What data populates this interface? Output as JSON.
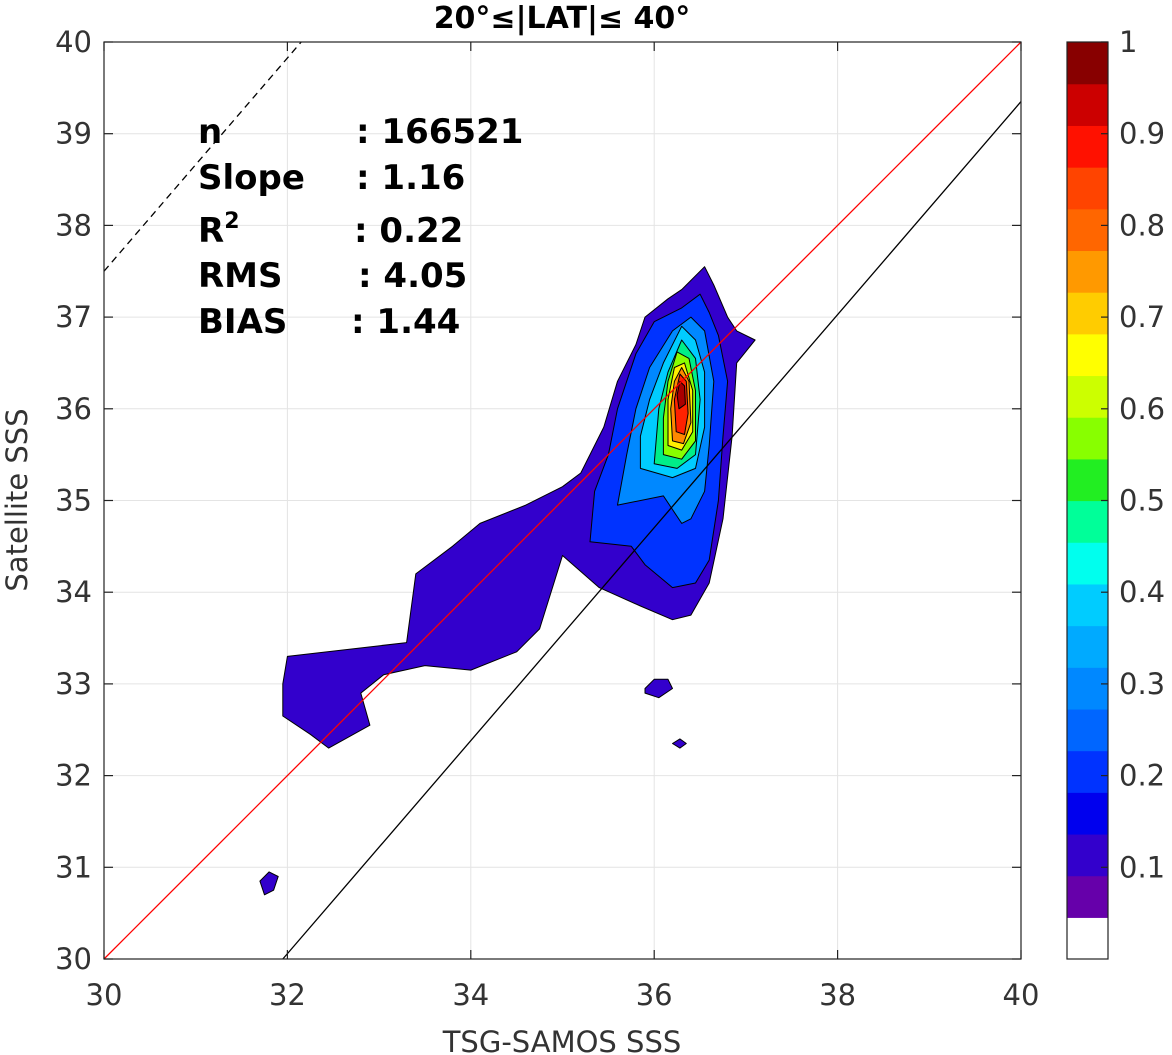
{
  "chart_data": {
    "type": "contour",
    "title": "20°≤|LAT|≤ 40°",
    "xlabel": "TSG-SAMOS SSS",
    "ylabel": "Satellite SSS",
    "xlim": [
      30,
      40
    ],
    "ylim": [
      30,
      40
    ],
    "x_ticks": [
      "30",
      "32",
      "34",
      "36",
      "38",
      "40"
    ],
    "y_ticks": [
      "30",
      "31",
      "32",
      "33",
      "34",
      "35",
      "36",
      "37",
      "38",
      "39",
      "40"
    ],
    "grid": true,
    "stats": {
      "n_label": "n",
      "n_value": ": 166521",
      "slope_label": "Slope",
      "slope_value": ": 1.16",
      "r2_label": "R",
      "r2_sup": "2",
      "r2_value": ": 0.22",
      "rms_label": "RMS",
      "rms_value": ": 4.05",
      "bias_label": "BIAS",
      "bias_value": ": 1.44"
    },
    "lines": [
      {
        "name": "one-to-one",
        "color": "#ff0000",
        "style": "solid",
        "points": [
          [
            30,
            30
          ],
          [
            40,
            40
          ]
        ]
      },
      {
        "name": "fit",
        "color": "#000000",
        "style": "solid",
        "points": [
          [
            31.95,
            30
          ],
          [
            40,
            39.35
          ]
        ]
      },
      {
        "name": "offset",
        "color": "#000000",
        "style": "dashed",
        "points": [
          [
            30,
            37.5
          ],
          [
            32.15,
            40
          ]
        ]
      }
    ],
    "contour_levels": [
      {
        "level": 0.05,
        "color": "#3300cc",
        "polygons": [
          [
            [
              32.0,
              33.3
            ],
            [
              33.3,
              33.45
            ],
            [
              33.4,
              34.2
            ],
            [
              33.8,
              34.5
            ],
            [
              34.1,
              34.75
            ],
            [
              34.6,
              34.95
            ],
            [
              35.0,
              35.15
            ],
            [
              35.2,
              35.3
            ],
            [
              35.45,
              35.8
            ],
            [
              35.6,
              36.3
            ],
            [
              35.8,
              36.7
            ],
            [
              35.9,
              37.0
            ],
            [
              36.15,
              37.2
            ],
            [
              36.3,
              37.3
            ],
            [
              36.55,
              37.55
            ],
            [
              36.65,
              37.35
            ],
            [
              36.8,
              37.0
            ],
            [
              36.9,
              36.85
            ],
            [
              37.1,
              36.75
            ],
            [
              36.9,
              36.5
            ],
            [
              36.85,
              35.7
            ],
            [
              36.75,
              34.8
            ],
            [
              36.6,
              34.1
            ],
            [
              36.4,
              33.75
            ],
            [
              36.2,
              33.7
            ],
            [
              35.85,
              33.85
            ],
            [
              35.4,
              34.05
            ],
            [
              35.0,
              34.4
            ],
            [
              34.75,
              33.6
            ],
            [
              34.5,
              33.35
            ],
            [
              34.0,
              33.15
            ],
            [
              33.5,
              33.2
            ],
            [
              33.05,
              33.1
            ],
            [
              32.8,
              32.9
            ],
            [
              32.9,
              32.55
            ],
            [
              32.45,
              32.3
            ],
            [
              32.25,
              32.45
            ],
            [
              31.95,
              32.65
            ],
            [
              31.95,
              33.0
            ]
          ],
          [
            [
              31.7,
              30.85
            ],
            [
              31.8,
              30.95
            ],
            [
              31.9,
              30.9
            ],
            [
              31.85,
              30.75
            ],
            [
              31.75,
              30.7
            ]
          ],
          [
            [
              35.9,
              32.95
            ],
            [
              36.0,
              33.05
            ],
            [
              36.15,
              33.05
            ],
            [
              36.2,
              32.95
            ],
            [
              36.05,
              32.85
            ],
            [
              35.9,
              32.9
            ]
          ],
          [
            [
              36.2,
              32.35
            ],
            [
              36.28,
              32.4
            ],
            [
              36.35,
              32.35
            ],
            [
              36.28,
              32.3
            ]
          ]
        ]
      },
      {
        "level": 0.15,
        "color": "#0033ff",
        "polygons": [
          [
            [
              35.3,
              34.55
            ],
            [
              35.75,
              34.5
            ],
            [
              35.9,
              34.3
            ],
            [
              36.2,
              34.05
            ],
            [
              36.45,
              34.1
            ],
            [
              36.6,
              34.35
            ],
            [
              36.7,
              35.0
            ],
            [
              36.75,
              35.7
            ],
            [
              36.8,
              36.3
            ],
            [
              36.7,
              36.8
            ],
            [
              36.6,
              37.05
            ],
            [
              36.5,
              37.25
            ],
            [
              36.3,
              37.1
            ],
            [
              36.0,
              36.95
            ],
            [
              35.8,
              36.6
            ],
            [
              35.6,
              36.0
            ],
            [
              35.5,
              35.5
            ],
            [
              35.35,
              35.1
            ]
          ]
        ]
      },
      {
        "level": 0.25,
        "color": "#0088ff",
        "polygons": [
          [
            [
              35.6,
              34.95
            ],
            [
              36.1,
              35.05
            ],
            [
              36.3,
              34.75
            ],
            [
              36.4,
              34.8
            ],
            [
              36.55,
              35.1
            ],
            [
              36.6,
              35.6
            ],
            [
              36.65,
              36.3
            ],
            [
              36.55,
              36.85
            ],
            [
              36.4,
              37.0
            ],
            [
              36.2,
              36.85
            ],
            [
              35.95,
              36.45
            ],
            [
              35.8,
              36.0
            ],
            [
              35.7,
              35.5
            ]
          ]
        ]
      },
      {
        "level": 0.35,
        "color": "#00ccff",
        "polygons": [
          [
            [
              35.85,
              35.35
            ],
            [
              36.2,
              35.25
            ],
            [
              36.45,
              35.35
            ],
            [
              36.55,
              35.8
            ],
            [
              36.55,
              36.4
            ],
            [
              36.45,
              36.75
            ],
            [
              36.3,
              36.9
            ],
            [
              36.1,
              36.5
            ],
            [
              35.95,
              36.1
            ],
            [
              35.85,
              35.7
            ]
          ]
        ]
      },
      {
        "level": 0.45,
        "color": "#00ee88",
        "polygons": [
          [
            [
              36.0,
              35.4
            ],
            [
              36.25,
              35.35
            ],
            [
              36.45,
              35.5
            ],
            [
              36.5,
              36.1
            ],
            [
              36.45,
              36.55
            ],
            [
              36.3,
              36.75
            ],
            [
              36.15,
              36.4
            ],
            [
              36.05,
              36.0
            ]
          ]
        ]
      },
      {
        "level": 0.55,
        "color": "#88ff00",
        "polygons": [
          [
            [
              36.1,
              35.5
            ],
            [
              36.3,
              35.45
            ],
            [
              36.45,
              35.65
            ],
            [
              36.45,
              36.2
            ],
            [
              36.38,
              36.55
            ],
            [
              36.25,
              36.62
            ],
            [
              36.15,
              36.3
            ],
            [
              36.1,
              35.9
            ]
          ]
        ]
      },
      {
        "level": 0.65,
        "color": "#ffee00",
        "polygons": [
          [
            [
              36.15,
              35.6
            ],
            [
              36.3,
              35.55
            ],
            [
              36.42,
              35.75
            ],
            [
              36.42,
              36.2
            ],
            [
              36.33,
              36.5
            ],
            [
              36.22,
              36.45
            ],
            [
              36.15,
              36.1
            ]
          ]
        ]
      },
      {
        "level": 0.75,
        "color": "#ff8800",
        "polygons": [
          [
            [
              36.2,
              35.65
            ],
            [
              36.32,
              35.62
            ],
            [
              36.4,
              35.85
            ],
            [
              36.38,
              36.3
            ],
            [
              36.3,
              36.45
            ],
            [
              36.22,
              36.3
            ],
            [
              36.18,
              36.0
            ]
          ]
        ]
      },
      {
        "level": 0.85,
        "color": "#ff2200",
        "polygons": [
          [
            [
              36.24,
              35.75
            ],
            [
              36.33,
              35.72
            ],
            [
              36.37,
              35.95
            ],
            [
              36.35,
              36.3
            ],
            [
              36.28,
              36.38
            ],
            [
              36.22,
              36.1
            ]
          ]
        ]
      },
      {
        "level": 0.95,
        "color": "#aa0000",
        "polygons": [
          [
            [
              36.27,
              36.0
            ],
            [
              36.34,
              36.05
            ],
            [
              36.33,
              36.25
            ],
            [
              36.28,
              36.3
            ],
            [
              36.25,
              36.15
            ]
          ]
        ]
      }
    ],
    "colorbar": {
      "ticks": [
        "0.1",
        "0.2",
        "0.3",
        "0.4",
        "0.5",
        "0.6",
        "0.7",
        "0.8",
        "0.9",
        "1"
      ],
      "range": [
        0,
        1
      ],
      "colors": [
        "#ffffff",
        "#6600aa",
        "#3300cc",
        "#0000ee",
        "#0033ff",
        "#0066ff",
        "#0088ff",
        "#00aaff",
        "#00ccff",
        "#00ffee",
        "#00ff99",
        "#22ee22",
        "#88ff00",
        "#ccff00",
        "#ffff00",
        "#ffcc00",
        "#ff9900",
        "#ff6600",
        "#ff4400",
        "#ff1100",
        "#cc0000",
        "#880000"
      ]
    }
  }
}
